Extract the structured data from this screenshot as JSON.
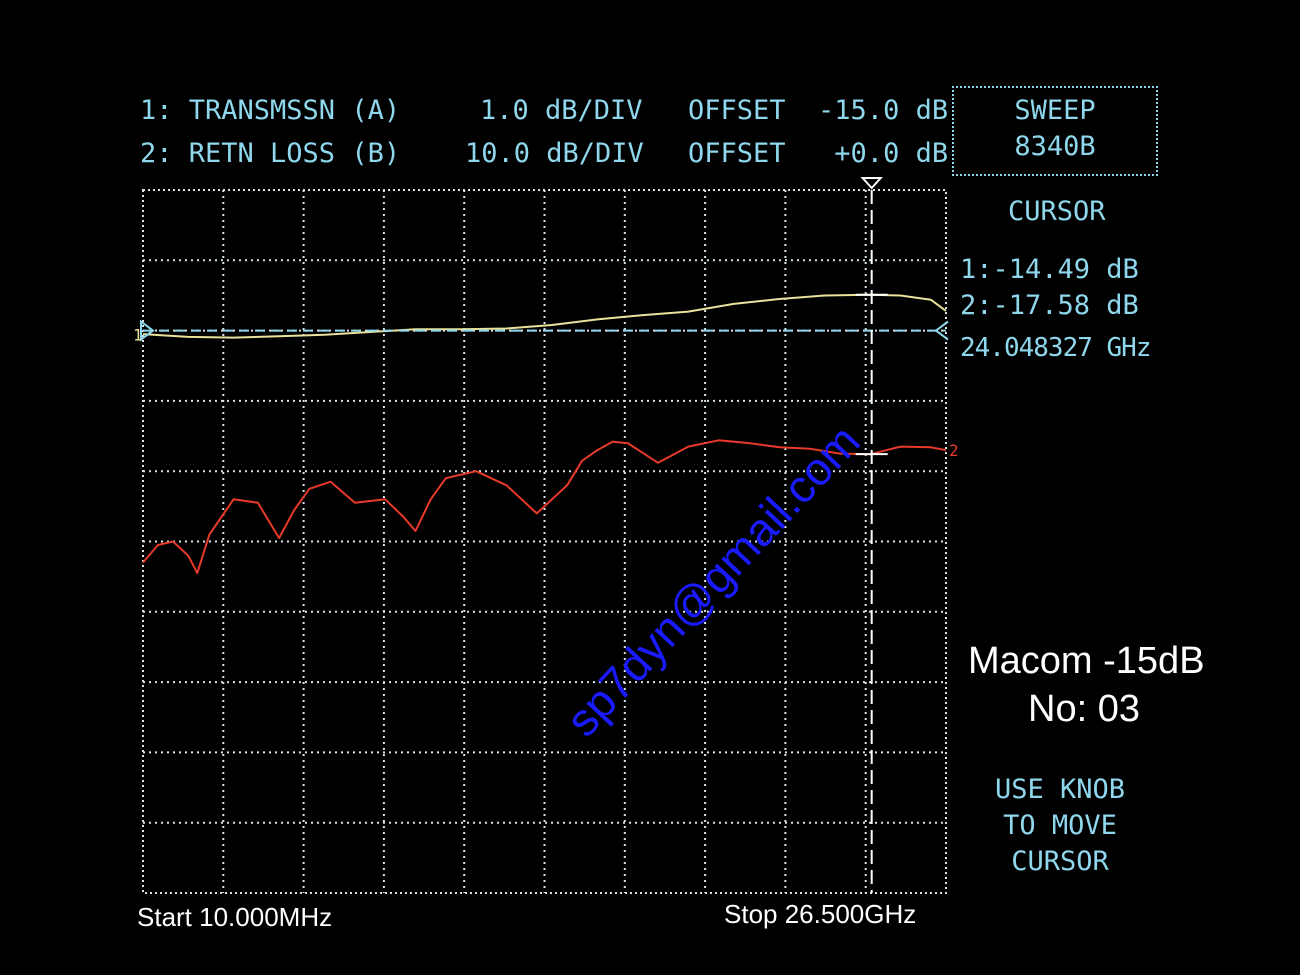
{
  "header": {
    "ch1_name": "1: TRANSMSSN (A)",
    "ch1_scale": "1.0 dB/DIV",
    "ch1_offset": "OFFSET  -15.0 dB",
    "ch2_name": "2: RETN LOSS (B)",
    "ch2_scale": "10.0 dB/DIV",
    "ch2_offset": "OFFSET   +0.0 dB"
  },
  "side": {
    "sweep_line1": "SWEEP",
    "sweep_line2": "8340B",
    "cursor_title": "CURSOR",
    "cursor_ch1": "1:-14.49 dB",
    "cursor_ch2": "2:-17.58 dB",
    "cursor_freq": "24.048327 GHz",
    "device_line1": "Macom -15dB",
    "device_line2": "No: 03",
    "hint_line1": "USE KNOB",
    "hint_line2": "TO MOVE",
    "hint_line3": "CURSOR"
  },
  "footer": {
    "start": "Start 10.000MHz",
    "stop": "Stop 26.500GHz"
  },
  "watermark": "sp7dyn@gmail.com",
  "colors": {
    "screen_text": "#8fd7ec",
    "grid": "#d8e4ea",
    "trace1": "#e8e29a",
    "trace2": "#e83a2a",
    "watermark": "#1a1aff"
  },
  "chart_data": {
    "type": "line",
    "x_unit": "GHz",
    "xlim": [
      0.01,
      26.5
    ],
    "divisions": {
      "x": 10,
      "y": 10
    },
    "ref_div_from_top": 2,
    "cursor_x": 24.048327,
    "trace1_marker": "1",
    "trace2_marker": "2",
    "series": [
      {
        "channel": 1,
        "scale_db_per_div": 1.0,
        "offset_db": -15.0,
        "x": [
          0.01,
          1.5,
          3.0,
          4.5,
          6.0,
          7.5,
          9.0,
          10.5,
          12.0,
          13.5,
          15.0,
          16.5,
          18.0,
          19.5,
          21.0,
          22.5,
          24.0,
          25.0,
          26.0,
          26.5
        ],
        "values": [
          -15.05,
          -15.09,
          -15.1,
          -15.08,
          -15.06,
          -15.02,
          -14.98,
          -14.98,
          -14.97,
          -14.92,
          -14.84,
          -14.78,
          -14.73,
          -14.62,
          -14.55,
          -14.5,
          -14.49,
          -14.5,
          -14.56,
          -14.72
        ]
      },
      {
        "channel": 2,
        "scale_db_per_div": 10.0,
        "offset_db": 0.0,
        "x": [
          0.01,
          0.5,
          1.0,
          1.5,
          1.8,
          2.2,
          3.0,
          3.8,
          4.5,
          5.0,
          5.5,
          6.2,
          7.0,
          8.0,
          8.6,
          9.0,
          9.5,
          10.0,
          11.0,
          12.0,
          13.0,
          14.0,
          14.5,
          15.0,
          15.5,
          16.0,
          17.0,
          18.0,
          19.0,
          20.0,
          21.0,
          22.0,
          23.0,
          24.0,
          25.0,
          26.0,
          26.5
        ],
        "values": [
          -33.0,
          -30.5,
          -30.0,
          -32.0,
          -34.5,
          -29.0,
          -24.0,
          -24.5,
          -29.5,
          -25.5,
          -22.5,
          -21.5,
          -24.5,
          -24.0,
          -26.5,
          -28.5,
          -24.0,
          -21.0,
          -20.0,
          -22.0,
          -26.0,
          -22.0,
          -18.5,
          -17.0,
          -15.8,
          -16.0,
          -18.8,
          -16.5,
          -15.6,
          -16.0,
          -16.6,
          -16.8,
          -17.5,
          -17.58,
          -16.5,
          -16.6,
          -17.0
        ]
      }
    ]
  }
}
